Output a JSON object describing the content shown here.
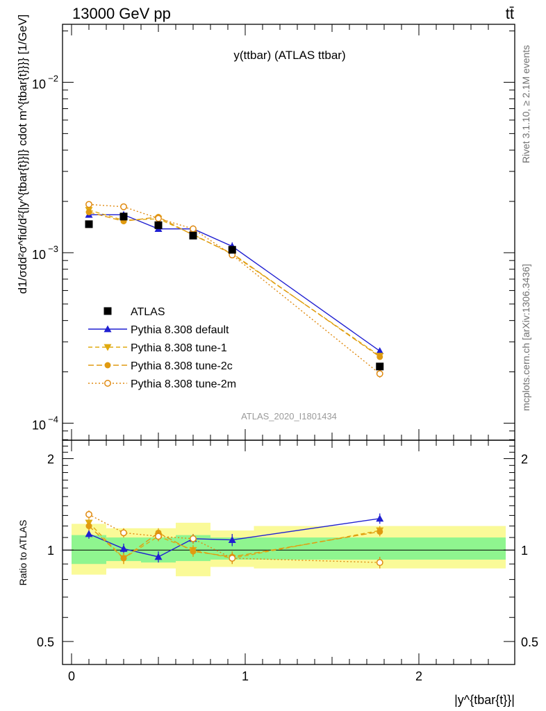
{
  "header": {
    "left": "13000 GeV pp",
    "right": "tt̄",
    "side_top": "Rivet 3.1.10, ≥ 2.1M events",
    "side_bottom": "mcplots.cern.ch [arXiv:1306.3436]"
  },
  "chart_data": {
    "type": "line",
    "title": "y(ttbar) (ATLAS ttbar)",
    "analysis_label": "ATLAS_2020_I1801434",
    "xlabel": "|y^{tbar{t}}|",
    "ylabel_main": "d1/σdd²σ^fid/d²{|y^{tbar{t}}|} cdot m^{tbar{t}}}} [1/GeV]",
    "ylabel_ratio": "Ratio to ATLAS",
    "xlim": [
      -0.05,
      2.55
    ],
    "ylim_main": [
      8e-05,
      0.022
    ],
    "ylim_ratio": [
      0.42,
      2.3
    ],
    "yscale": "log",
    "x_tick_labels": [
      "0",
      "1",
      "2"
    ],
    "main_tick_labels": {
      "base": "10",
      "exponents": [
        "−4",
        "−3",
        "−2"
      ]
    },
    "ratio_tick_labels": [
      "0.5",
      "1",
      "2"
    ],
    "legend_position": "middle-left",
    "bins": [
      [
        0.0,
        0.2
      ],
      [
        0.2,
        0.4
      ],
      [
        0.4,
        0.6
      ],
      [
        0.6,
        0.8
      ],
      [
        0.8,
        1.05
      ],
      [
        1.05,
        2.5
      ]
    ],
    "data": {
      "name": "ATLAS",
      "x": [
        0.1,
        0.3,
        0.5,
        0.7,
        0.925,
        1.775
      ],
      "y": [
        0.00147,
        0.00163,
        0.00145,
        0.00126,
        0.00104,
        0.000215
      ],
      "color": "#000000"
    },
    "band_inner": [
      0.9,
      0.92,
      0.91,
      0.92,
      0.93,
      0.93
    ],
    "band_inner_hi": [
      1.12,
      1.1,
      1.1,
      1.12,
      1.1,
      1.1
    ],
    "band_outer": [
      0.83,
      0.87,
      0.87,
      0.82,
      0.88,
      0.87
    ],
    "band_outer_hi": [
      1.22,
      1.18,
      1.18,
      1.23,
      1.16,
      1.2
    ],
    "band_colors": {
      "inner": "#8ff58f",
      "outer": "#fafa98"
    },
    "series": [
      {
        "name": "Pythia 8.308 default",
        "color": "#1f1fd1",
        "dash": "",
        "marker": "triangle-up",
        "y": [
          0.00167,
          0.00167,
          0.00138,
          0.00138,
          0.00109,
          0.000265
        ],
        "yerr": [
          4e-05,
          4e-05,
          4e-05,
          4e-05,
          6e-05,
          1e-05
        ],
        "ratio": [
          1.13,
          1.01,
          0.95,
          1.09,
          1.08,
          1.27
        ],
        "ratio_err": [
          0.04,
          0.04,
          0.04,
          0.04,
          0.05,
          0.05
        ]
      },
      {
        "name": "Pythia 8.308 tune-1",
        "color": "#e0aa10",
        "dash": "6,4",
        "marker": "triangle-down",
        "y": [
          0.00178,
          0.00155,
          0.00158,
          0.00128,
          0.00098,
          0.000248
        ],
        "yerr": [
          4e-05,
          4e-05,
          4e-05,
          4e-05,
          4e-05,
          1e-05
        ],
        "ratio": [
          1.23,
          0.94,
          1.11,
          1.0,
          0.94,
          1.16
        ],
        "ratio_err": [
          0.04,
          0.04,
          0.04,
          0.04,
          0.04,
          0.04
        ]
      },
      {
        "name": "Pythia 8.308 tune-2c",
        "color": "#e09a10",
        "dash": "8,4",
        "marker": "circle",
        "y": [
          0.00173,
          0.00153,
          0.00162,
          0.00127,
          0.00099,
          0.000245
        ],
        "yerr": [
          4e-05,
          4e-05,
          4e-05,
          4e-05,
          4e-05,
          1e-05
        ],
        "ratio": [
          1.2,
          0.94,
          1.14,
          0.99,
          0.95,
          1.15
        ],
        "ratio_err": [
          0.04,
          0.04,
          0.04,
          0.04,
          0.04,
          0.04
        ]
      },
      {
        "name": "Pythia 8.308 tune-2m",
        "color": "#e08a10",
        "dash": "2,3",
        "marker": "circle-open",
        "y": [
          0.00192,
          0.00186,
          0.00159,
          0.00138,
          0.00097,
          0.000195
        ],
        "yerr": [
          4e-05,
          4e-05,
          4e-05,
          4e-05,
          4e-05,
          1e-05
        ],
        "ratio": [
          1.31,
          1.14,
          1.11,
          1.09,
          0.94,
          0.91
        ],
        "ratio_err": [
          0.04,
          0.04,
          0.04,
          0.04,
          0.04,
          0.04
        ]
      }
    ]
  }
}
